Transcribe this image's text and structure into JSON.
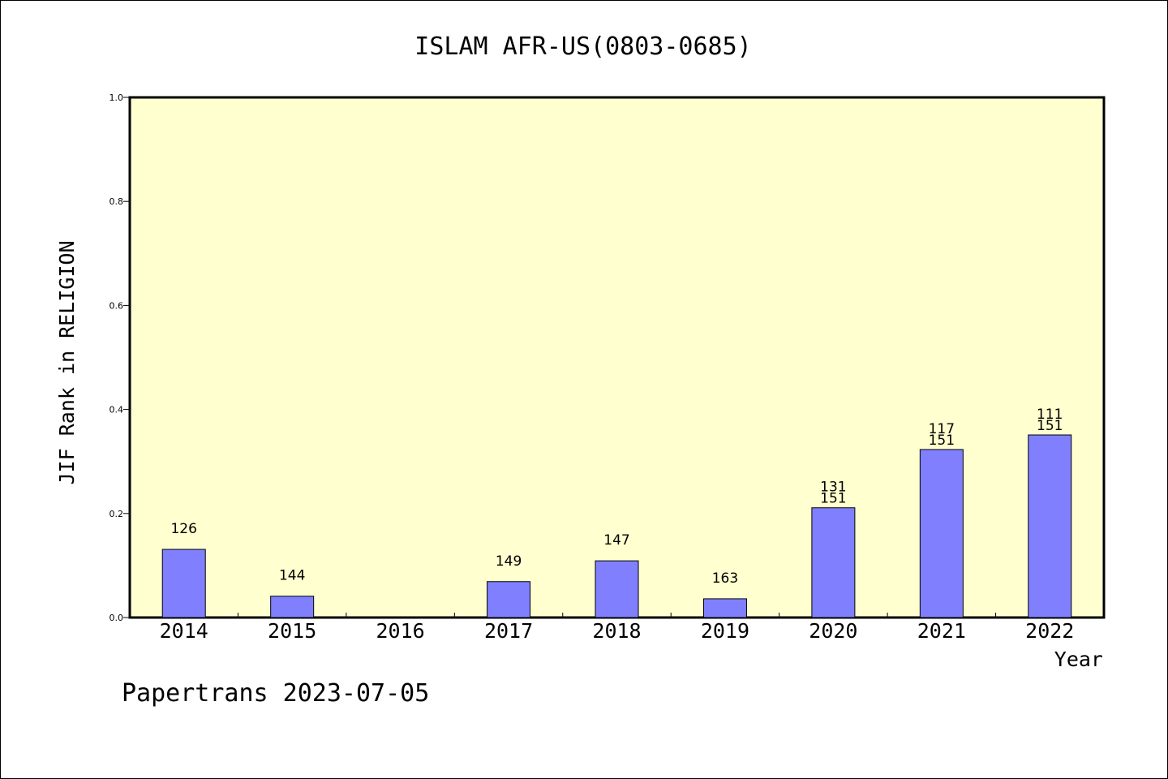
{
  "chart_data": {
    "type": "bar",
    "title": "ISLAM AFR-US(0803-0685)",
    "xlabel": "Year",
    "ylabel": "JIF Rank in RELIGION",
    "ylim": [
      0,
      1.0
    ],
    "yticks": [
      "0.0",
      "0.2",
      "0.4",
      "0.6",
      "0.8",
      "1.0"
    ],
    "categories": [
      "2014",
      "2015",
      "2016",
      "2017",
      "2018",
      "2019",
      "2020",
      "2021",
      "2022"
    ],
    "values": [
      0.131,
      0.041,
      null,
      0.069,
      0.109,
      0.036,
      0.211,
      0.323,
      0.351
    ],
    "bar_labels": [
      [
        "126"
      ],
      [
        "144"
      ],
      [],
      [
        "149"
      ],
      [
        "147"
      ],
      [
        "163"
      ],
      [
        "131",
        "151"
      ],
      [
        "117",
        "151"
      ],
      [
        "111",
        "151"
      ]
    ],
    "grid": false,
    "colors": {
      "plot_background": "#FFFFD0",
      "bar_fill": "#8080FF",
      "bar_stroke": "#000000"
    }
  },
  "footer": {
    "credit": "Papertrans 2023-07-05"
  }
}
